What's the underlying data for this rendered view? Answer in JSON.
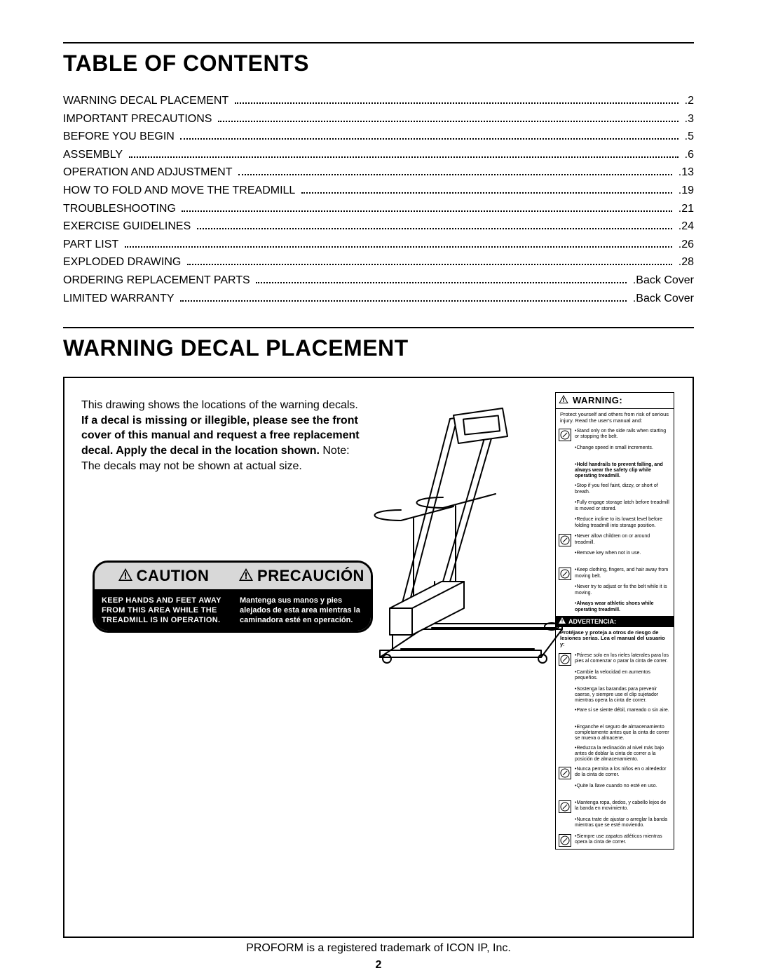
{
  "toc": {
    "heading": "TABLE OF CONTENTS",
    "items": [
      {
        "label": "WARNING DECAL PLACEMENT",
        "page": "2"
      },
      {
        "label": "IMPORTANT PRECAUTIONS",
        "page": "3"
      },
      {
        "label": "BEFORE YOU BEGIN",
        "page": "5"
      },
      {
        "label": "ASSEMBLY",
        "page": "6"
      },
      {
        "label": "OPERATION AND ADJUSTMENT",
        "page": "13"
      },
      {
        "label": "HOW TO FOLD AND MOVE THE TREADMILL",
        "page": "19"
      },
      {
        "label": "TROUBLESHOOTING",
        "page": "21"
      },
      {
        "label": "EXERCISE GUIDELINES",
        "page": "24"
      },
      {
        "label": "PART LIST",
        "page": "26"
      },
      {
        "label": "EXPLODED DRAWING",
        "page": "28"
      },
      {
        "label": "ORDERING REPLACEMENT PARTS",
        "page": "Back Cover"
      },
      {
        "label": "LIMITED WARRANTY",
        "page": "Back Cover"
      }
    ]
  },
  "decal": {
    "heading": "WARNING DECAL PLACEMENT",
    "intro_pre": "This drawing shows the locations of the warning decals. ",
    "intro_bold": "If a decal is missing or illegible, please see the front cover of this manual and request a free replacement decal. Apply the decal in the location shown.",
    "intro_post": " Note: The decals may not be shown at actual size.",
    "caution": {
      "left_title": "CAUTION",
      "right_title": "PRECAUCIÓN",
      "left_body": "KEEP HANDS AND FEET AWAY FROM THIS AREA WHILE THE TREADMILL IS IN OPERATION.",
      "right_body": "Mantenga sus manos y pies alejados de esta area mientras la caminadora esté en operación."
    },
    "warning_label": {
      "header": "WARNING:",
      "intro": "Protect yourself and others from risk of serious injury. Read the user's manual and:",
      "items_en": [
        {
          "icon": true,
          "text": "Stand only on the side rails when starting or stopping the belt."
        },
        {
          "icon": false,
          "text": "Change speed in small increments."
        },
        {
          "icon": false,
          "text": "Hold handrails to prevent falling, and always wear the safety clip while operating treadmill.",
          "bold": true
        },
        {
          "icon": false,
          "text": "Stop if you feel faint, dizzy, or short of breath."
        },
        {
          "icon": false,
          "text": "Fully engage storage latch before treadmill is moved or stored."
        },
        {
          "icon": false,
          "text": "Reduce incline to its lowest level before folding treadmill into storage position."
        },
        {
          "icon": true,
          "text": "Never allow children on or around treadmill."
        },
        {
          "icon": false,
          "text": "Remove key when not in use."
        },
        {
          "icon": true,
          "text": "Keep clothing, fingers, and hair away from moving belt."
        },
        {
          "icon": false,
          "text": "Never try to adjust or fix the belt while it is moving."
        },
        {
          "icon": false,
          "text": "Always wear athletic shoes while operating treadmill.",
          "bold": true
        }
      ],
      "sub_header": "ADVERTENCIA:",
      "intro_es": "Protéjase y proteja a otros de riesgo de lesiones serias. Lea el manual del usuario y:",
      "items_es": [
        {
          "icon": true,
          "text": "Párese solo en los rieles laterales para los pies al comenzar o parar la cinta de correr."
        },
        {
          "icon": false,
          "text": "Cambie la velocidad en aumentos pequeños."
        },
        {
          "icon": false,
          "text": "Sostenga las barandas para prevenir caerse, y siempre use el clip sujetador mientras opera la cinta de correr."
        },
        {
          "icon": false,
          "text": "Pare si se siente débil, mareado o sin aire."
        },
        {
          "icon": false,
          "text": "Enganche el seguro de almacenamiento completamente antes que la cinta de correr se mueva o almacene."
        },
        {
          "icon": false,
          "text": "Reduzca la reclinación al nivel más bajo antes de doblar la cinta de correr a la posición de almacenamiento."
        },
        {
          "icon": true,
          "text": "Nunca permita a los niños en o alrededor de la cinta de correr."
        },
        {
          "icon": false,
          "text": "Quite la llave cuando no esté en uso."
        },
        {
          "icon": true,
          "text": "Mantenga ropa, dedos, y cabello lejos de la banda en movimiento."
        },
        {
          "icon": false,
          "text": "Nunca trate de ajustar o arreglar la banda mientras que se esté moviendo."
        },
        {
          "icon": true,
          "text": "Siempre use zapatos atléticos mientras opera la cinta de correr."
        }
      ]
    }
  },
  "footer": "PROFORM is a registered trademark of ICON IP, Inc.",
  "page_number": "2"
}
